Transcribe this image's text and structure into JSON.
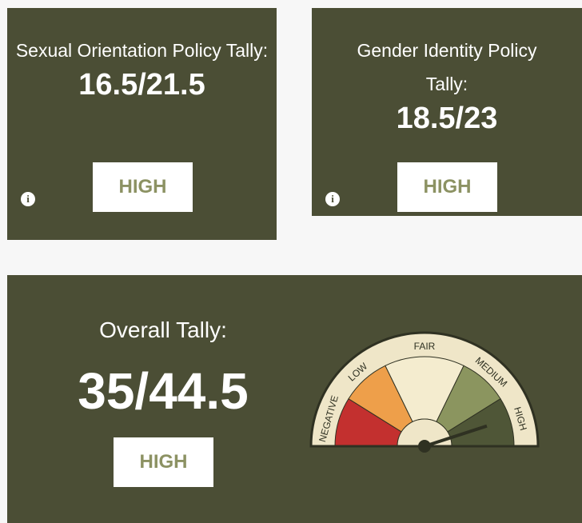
{
  "cards": [
    {
      "title": "Sexual Orientation Policy Tally:",
      "score": "16.5/21.5",
      "rating": "HIGH"
    },
    {
      "title": "Gender Identity Policy Tally:",
      "score": "18.5/23",
      "rating": "HIGH"
    },
    {
      "title": "Overall Tally:",
      "score": "35/44.5",
      "rating": "HIGH"
    }
  ],
  "gauge": {
    "labels": [
      "NEGATIVE",
      "LOW",
      "FAIR",
      "MEDIUM",
      "HIGH"
    ]
  }
}
